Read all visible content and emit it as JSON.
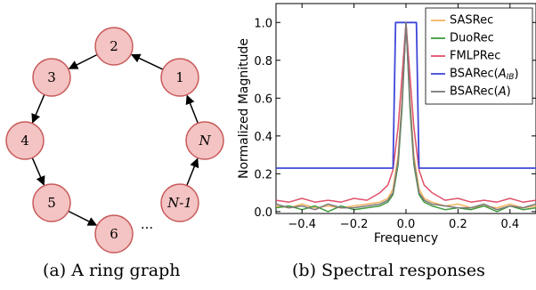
{
  "panel_a": {
    "caption": "(a)  A ring graph",
    "nodes": [
      {
        "label": "2",
        "italic": false
      },
      {
        "label": "1",
        "italic": false
      },
      {
        "label": "N",
        "italic": true
      },
      {
        "label": "N-1",
        "italic": true
      },
      {
        "label": "6",
        "italic": false
      },
      {
        "label": "5",
        "italic": false
      },
      {
        "label": "4",
        "italic": false
      },
      {
        "label": "3",
        "italic": false
      }
    ],
    "ellipsis": "···"
  },
  "panel_b": {
    "caption": "(b)  Spectral responses"
  },
  "colors": {
    "SASRec": "#f2b560",
    "DuoRec": "#3f9a3f",
    "FMLPRec": "#e0506a",
    "BSARec_AIB": "#3f48d8",
    "BSARec_A": "#7a7a7a",
    "node_fill": "#f4c3c3",
    "node_stroke": "#c85a5a"
  },
  "chart_data": {
    "type": "line",
    "xlabel": "Frequency",
    "ylabel": "Normalized Magnitude",
    "xlim": [
      -0.5,
      0.5
    ],
    "ylim": [
      -0.01,
      1.1
    ],
    "xticks": [
      -0.4,
      -0.2,
      0.0,
      0.2,
      0.4
    ],
    "xtick_labels": [
      "−0.4",
      "−0.2",
      "0.0",
      "0.2",
      "0.4"
    ],
    "yticks": [
      0.0,
      0.2,
      0.4,
      0.6,
      0.8,
      1.0
    ],
    "ytick_labels": [
      "0.0",
      "0.2",
      "0.4",
      "0.6",
      "0.8",
      "1.0"
    ],
    "legend_position": "top-right",
    "series": [
      {
        "name": "SASRec",
        "x": [
          -0.5,
          -0.45,
          -0.4,
          -0.35,
          -0.3,
          -0.25,
          -0.2,
          -0.15,
          -0.1,
          -0.07,
          -0.05,
          -0.03,
          -0.015,
          0.0,
          0.015,
          0.03,
          0.05,
          0.07,
          0.1,
          0.15,
          0.2,
          0.25,
          0.3,
          0.35,
          0.4,
          0.45,
          0.5
        ],
        "y": [
          0.03,
          0.02,
          0.04,
          0.02,
          0.03,
          0.02,
          0.03,
          0.04,
          0.05,
          0.07,
          0.12,
          0.3,
          0.6,
          1.0,
          0.6,
          0.3,
          0.12,
          0.07,
          0.05,
          0.03,
          0.04,
          0.02,
          0.03,
          0.02,
          0.04,
          0.02,
          0.03
        ]
      },
      {
        "name": "DuoRec",
        "x": [
          -0.5,
          -0.45,
          -0.4,
          -0.35,
          -0.3,
          -0.25,
          -0.2,
          -0.15,
          -0.1,
          -0.07,
          -0.05,
          -0.03,
          -0.015,
          0.0,
          0.015,
          0.03,
          0.05,
          0.07,
          0.1,
          0.15,
          0.2,
          0.25,
          0.3,
          0.35,
          0.4,
          0.45,
          0.5
        ],
        "y": [
          0.02,
          0.03,
          0.01,
          0.03,
          0.0,
          0.03,
          0.01,
          0.02,
          0.03,
          0.05,
          0.09,
          0.25,
          0.55,
          1.0,
          0.55,
          0.25,
          0.09,
          0.05,
          0.03,
          0.01,
          0.02,
          0.01,
          0.03,
          0.0,
          0.03,
          0.01,
          0.02
        ]
      },
      {
        "name": "FMLPRec",
        "x": [
          -0.5,
          -0.45,
          -0.4,
          -0.35,
          -0.3,
          -0.25,
          -0.2,
          -0.15,
          -0.1,
          -0.07,
          -0.05,
          -0.03,
          -0.015,
          0.0,
          0.015,
          0.03,
          0.05,
          0.07,
          0.1,
          0.15,
          0.2,
          0.25,
          0.3,
          0.35,
          0.4,
          0.45,
          0.5
        ],
        "y": [
          0.06,
          0.05,
          0.07,
          0.05,
          0.06,
          0.05,
          0.07,
          0.06,
          0.1,
          0.14,
          0.22,
          0.45,
          0.72,
          1.0,
          0.72,
          0.45,
          0.22,
          0.14,
          0.1,
          0.06,
          0.07,
          0.05,
          0.06,
          0.05,
          0.07,
          0.05,
          0.06
        ]
      },
      {
        "name": "BSARec(A_IB)",
        "x": [
          -0.5,
          -0.05,
          -0.04,
          0.04,
          0.05,
          0.5
        ],
        "y": [
          0.23,
          0.23,
          1.0,
          1.0,
          0.23,
          0.23
        ]
      },
      {
        "name": "BSARec(A)",
        "x": [
          -0.5,
          -0.45,
          -0.4,
          -0.35,
          -0.3,
          -0.25,
          -0.2,
          -0.15,
          -0.1,
          -0.07,
          -0.05,
          -0.03,
          -0.015,
          0.0,
          0.015,
          0.03,
          0.05,
          0.07,
          0.1,
          0.15,
          0.2,
          0.25,
          0.3,
          0.35,
          0.4,
          0.45,
          0.5
        ],
        "y": [
          0.04,
          0.02,
          0.03,
          0.01,
          0.04,
          0.02,
          0.02,
          0.03,
          0.04,
          0.06,
          0.1,
          0.27,
          0.58,
          1.0,
          0.58,
          0.27,
          0.1,
          0.06,
          0.04,
          0.03,
          0.02,
          0.02,
          0.04,
          0.01,
          0.03,
          0.02,
          0.04
        ]
      }
    ]
  }
}
